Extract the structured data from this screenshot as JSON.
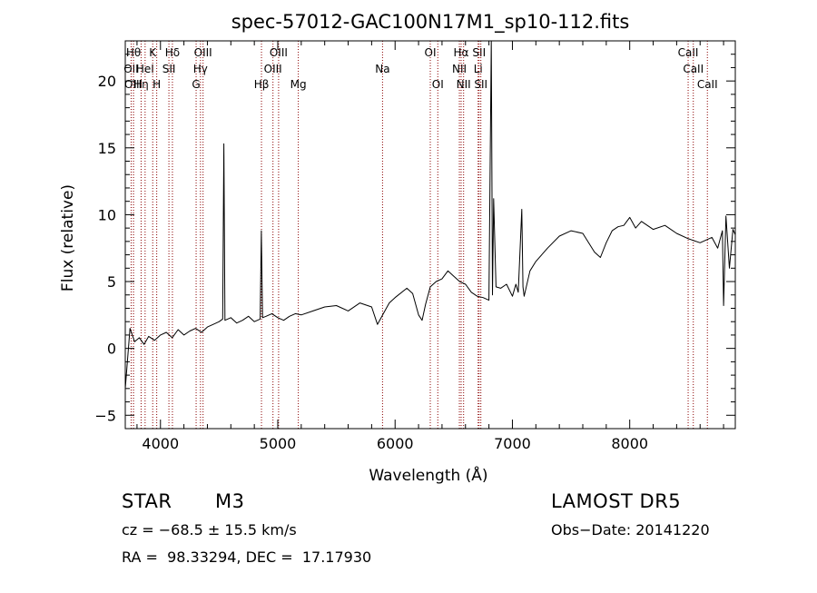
{
  "chart_data": {
    "type": "line",
    "title": "spec-57012-GAC100N17M1_sp10-112.fits",
    "xlabel": "Wavelength (Å)",
    "ylabel": "Flux (relative)",
    "xlim": [
      3700,
      8900
    ],
    "ylim": [
      -6,
      23
    ],
    "xticks": [
      4000,
      5000,
      6000,
      7000,
      8000
    ],
    "yticks": [
      -5,
      0,
      5,
      10,
      15,
      20
    ],
    "grid": false,
    "line_color": "#000000",
    "marker_color": "#8b0000",
    "series": [
      {
        "x": [
          3700,
          3740,
          3780,
          3820,
          3860,
          3900,
          3950,
          4000,
          4050,
          4100,
          4150,
          4200,
          4250,
          4300,
          4350,
          4400,
          4450,
          4500,
          4530,
          4540,
          4550,
          4600,
          4650,
          4700,
          4750,
          4800,
          4850,
          4860,
          4870,
          4900,
          4950,
          5000,
          5050,
          5100,
          5150,
          5200,
          5300,
          5400,
          5500,
          5600,
          5700,
          5800,
          5850,
          5900,
          5950,
          6000,
          6100,
          6150,
          6200,
          6230,
          6260,
          6300,
          6350,
          6400,
          6450,
          6500,
          6550,
          6600,
          6650,
          6700,
          6750,
          6800,
          6820,
          6830,
          6840,
          6860,
          6900,
          6950,
          7000,
          7030,
          7050,
          7080,
          7090,
          7100,
          7150,
          7200,
          7300,
          7400,
          7500,
          7600,
          7700,
          7750,
          7800,
          7850,
          7900,
          7950,
          8000,
          8050,
          8100,
          8200,
          8300,
          8400,
          8500,
          8600,
          8700,
          8750,
          8790,
          8800,
          8820,
          8850,
          8880,
          8900
        ],
        "y": [
          -3,
          1.5,
          0.5,
          0.8,
          0.3,
          0.9,
          0.6,
          1.0,
          1.2,
          0.8,
          1.4,
          1.0,
          1.3,
          1.5,
          1.2,
          1.6,
          1.8,
          2.0,
          2.2,
          15.3,
          2.1,
          2.3,
          1.9,
          2.1,
          2.4,
          2.0,
          2.2,
          8.8,
          2.3,
          2.4,
          2.6,
          2.3,
          2.1,
          2.4,
          2.6,
          2.5,
          2.8,
          3.1,
          3.2,
          2.8,
          3.4,
          3.1,
          1.8,
          2.6,
          3.4,
          3.8,
          4.5,
          4.1,
          2.5,
          2.1,
          3.3,
          4.6,
          5.0,
          5.2,
          5.8,
          5.4,
          5.0,
          4.8,
          4.2,
          3.9,
          3.8,
          3.6,
          23,
          4.0,
          11.2,
          4.6,
          4.5,
          4.8,
          3.9,
          4.8,
          4.2,
          10.4,
          4.6,
          3.9,
          5.8,
          6.5,
          7.5,
          8.4,
          8.8,
          8.6,
          7.2,
          6.8,
          7.9,
          8.8,
          9.1,
          9.2,
          9.8,
          9.0,
          9.5,
          8.9,
          9.2,
          8.6,
          8.2,
          7.9,
          8.3,
          7.5,
          8.8,
          3.2,
          9.9,
          6.0,
          8.9,
          8.5
        ]
      }
    ],
    "line_markers": [
      {
        "x": 3750,
        "row": 1,
        "label": "OII"
      },
      {
        "x": 3770,
        "row": 0,
        "label": "Hθ"
      },
      {
        "x": 3770,
        "row": 2,
        "label": "OIII"
      },
      {
        "x": 3835,
        "row": 2,
        "label": "Hη"
      },
      {
        "x": 3869,
        "row": 1,
        "label": "HeI"
      },
      {
        "x": 3934,
        "row": 0,
        "label": "K"
      },
      {
        "x": 3968,
        "row": 2,
        "label": "H"
      },
      {
        "x": 4072,
        "row": 1,
        "label": "SII"
      },
      {
        "x": 4102,
        "row": 0,
        "label": "Hδ"
      },
      {
        "x": 4304,
        "row": 2,
        "label": "G"
      },
      {
        "x": 4341,
        "row": 1,
        "label": "Hγ"
      },
      {
        "x": 4363,
        "row": 0,
        "label": "OIII"
      },
      {
        "x": 4861,
        "row": 2,
        "label": "Hβ"
      },
      {
        "x": 4959,
        "row": 1,
        "label": "OIII"
      },
      {
        "x": 5007,
        "row": 0,
        "label": "OIII"
      },
      {
        "x": 5175,
        "row": 2,
        "label": "Mg"
      },
      {
        "x": 5893,
        "row": 1,
        "label": "Na"
      },
      {
        "x": 6300,
        "row": 0,
        "label": "OI"
      },
      {
        "x": 6364,
        "row": 2,
        "label": "OI"
      },
      {
        "x": 6548,
        "row": 1,
        "label": "NII"
      },
      {
        "x": 6563,
        "row": 0,
        "label": "Hα"
      },
      {
        "x": 6584,
        "row": 2,
        "label": "NII"
      },
      {
        "x": 6708,
        "row": 1,
        "label": "Li"
      },
      {
        "x": 6716,
        "row": 0,
        "label": "SII"
      },
      {
        "x": 6731,
        "row": 2,
        "label": "SII"
      },
      {
        "x": 8498,
        "row": 0,
        "label": "CaII"
      },
      {
        "x": 8542,
        "row": 1,
        "label": "CaII"
      },
      {
        "x": 8662,
        "row": 2,
        "label": "CaII"
      }
    ]
  },
  "info": {
    "object_class": "STAR",
    "subclass": "M3",
    "survey": "LAMOST DR5",
    "cz": "cz = −68.5 ± 15.5 km/s",
    "obs_date": "Obs−Date: 20141220",
    "coords": "RA =  98.33294, DEC =  17.17930"
  }
}
